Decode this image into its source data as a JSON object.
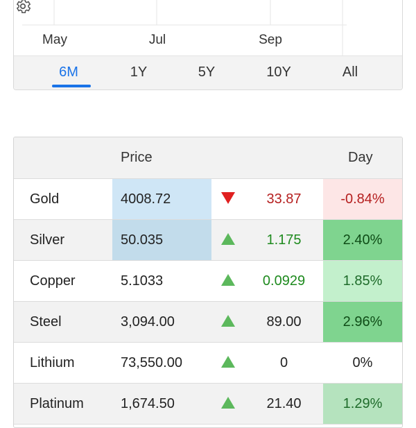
{
  "chart": {
    "x_labels": [
      "May",
      "Jul",
      "Sep"
    ],
    "settings_icon": "gear-icon",
    "ranges": [
      "6M",
      "1Y",
      "5Y",
      "10Y",
      "All"
    ],
    "active_range": "6M",
    "accent_color": "#1a73e8"
  },
  "table": {
    "headers": {
      "price": "Price",
      "day": "Day"
    },
    "rows": [
      {
        "name": "Gold",
        "price": "4008.72",
        "direction": "down",
        "change": "33.87",
        "day": "-0.84%"
      },
      {
        "name": "Silver",
        "price": "50.035",
        "direction": "up",
        "change": "1.175",
        "day": "2.40%"
      },
      {
        "name": "Copper",
        "price": "5.1033",
        "direction": "up",
        "change": "0.0929",
        "day": "1.85%"
      },
      {
        "name": "Steel",
        "price": "3,094.00",
        "direction": "up",
        "change": "89.00",
        "day": "2.96%"
      },
      {
        "name": "Lithium",
        "price": "73,550.00",
        "direction": "up",
        "change": "0",
        "day": "0%"
      },
      {
        "name": "Platinum",
        "price": "1,674.50",
        "direction": "up",
        "change": "21.40",
        "day": "1.29%"
      }
    ],
    "colors": {
      "up_text": "#1e8a1e",
      "down_text": "#b51f1f",
      "neutral_text": "#222222",
      "day_negative_bg": "#fde6e6",
      "day_positive_strong_bg": "#7fd48f",
      "day_positive_light_bg": "#c3f0cc",
      "day_positive_mid_bg": "#b5e3be",
      "price_highlight_bg": "#cfe6f6",
      "price_highlight_bg_alt": "#c2dceb"
    }
  }
}
